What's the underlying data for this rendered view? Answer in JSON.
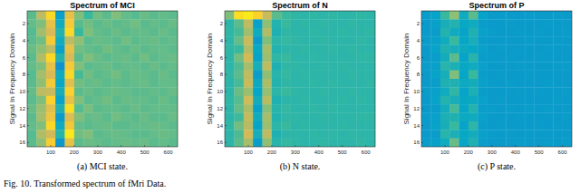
{
  "chart_data": [
    {
      "type": "heatmap",
      "title": "Spectrum of MCI",
      "y_label": "Signal In Frequency Domain",
      "caption": "(a) MCI state.",
      "xlim": [
        0,
        640
      ],
      "xticks": [
        100,
        200,
        300,
        400,
        500,
        600
      ],
      "ylim": [
        0.5,
        16.5
      ],
      "yticks": [
        2,
        4,
        6,
        8,
        10,
        12,
        14,
        16
      ],
      "zlim": [
        0,
        1
      ],
      "x": [
        20,
        60,
        100,
        140,
        180,
        220,
        260,
        300,
        340,
        380,
        420,
        460,
        500,
        540,
        580,
        620
      ],
      "y": [
        1,
        2,
        3,
        4,
        5,
        6,
        7,
        8,
        9,
        10,
        11,
        12,
        13,
        14,
        15,
        16
      ],
      "z": [
        [
          0.55,
          0.7,
          0.9,
          0.35,
          0.8,
          0.6,
          0.5,
          0.58,
          0.55,
          0.6,
          0.56,
          0.54,
          0.57,
          0.55,
          0.56,
          0.55
        ],
        [
          0.56,
          0.6,
          0.8,
          0.4,
          0.85,
          0.55,
          0.58,
          0.55,
          0.57,
          0.55,
          0.56,
          0.58,
          0.55,
          0.56,
          0.55,
          0.57
        ],
        [
          0.54,
          0.65,
          0.75,
          0.45,
          0.9,
          0.5,
          0.6,
          0.56,
          0.55,
          0.57,
          0.55,
          0.56,
          0.56,
          0.55,
          0.57,
          0.55
        ],
        [
          0.55,
          0.58,
          0.85,
          0.4,
          0.7,
          0.62,
          0.55,
          0.57,
          0.56,
          0.55,
          0.58,
          0.55,
          0.56,
          0.57,
          0.55,
          0.56
        ],
        [
          0.57,
          0.62,
          0.7,
          0.35,
          0.8,
          0.58,
          0.56,
          0.55,
          0.58,
          0.56,
          0.55,
          0.57,
          0.55,
          0.56,
          0.56,
          0.55
        ],
        [
          0.55,
          0.68,
          0.9,
          0.45,
          0.75,
          0.55,
          0.6,
          0.57,
          0.55,
          0.56,
          0.57,
          0.55,
          0.58,
          0.55,
          0.56,
          0.57
        ],
        [
          0.56,
          0.6,
          0.8,
          0.3,
          0.85,
          0.6,
          0.55,
          0.56,
          0.57,
          0.55,
          0.56,
          0.56,
          0.55,
          0.57,
          0.55,
          0.56
        ],
        [
          0.54,
          0.66,
          0.75,
          0.4,
          0.9,
          0.52,
          0.58,
          0.55,
          0.56,
          0.58,
          0.55,
          0.57,
          0.56,
          0.55,
          0.57,
          0.55
        ],
        [
          0.55,
          0.62,
          0.85,
          0.38,
          0.78,
          0.58,
          0.56,
          0.57,
          0.55,
          0.56,
          0.55,
          0.56,
          0.57,
          0.55,
          0.56,
          0.56
        ],
        [
          0.56,
          0.7,
          0.72,
          0.42,
          0.88,
          0.55,
          0.57,
          0.55,
          0.56,
          0.57,
          0.56,
          0.55,
          0.55,
          0.56,
          0.55,
          0.57
        ],
        [
          0.55,
          0.6,
          0.88,
          0.36,
          0.8,
          0.6,
          0.55,
          0.56,
          0.58,
          0.55,
          0.57,
          0.56,
          0.56,
          0.55,
          0.57,
          0.55
        ],
        [
          0.57,
          0.64,
          0.78,
          0.44,
          0.92,
          0.54,
          0.59,
          0.55,
          0.56,
          0.56,
          0.55,
          0.57,
          0.55,
          0.56,
          0.56,
          0.56
        ],
        [
          0.55,
          0.66,
          0.82,
          0.33,
          0.76,
          0.6,
          0.56,
          0.57,
          0.55,
          0.58,
          0.56,
          0.55,
          0.57,
          0.55,
          0.55,
          0.57
        ],
        [
          0.56,
          0.6,
          0.9,
          0.4,
          0.84,
          0.56,
          0.55,
          0.56,
          0.57,
          0.55,
          0.55,
          0.56,
          0.56,
          0.57,
          0.56,
          0.55
        ],
        [
          0.54,
          0.68,
          0.74,
          0.46,
          0.95,
          0.58,
          0.6,
          0.55,
          0.56,
          0.57,
          0.56,
          0.55,
          0.55,
          0.56,
          0.57,
          0.56
        ],
        [
          0.55,
          0.62,
          0.86,
          0.32,
          0.8,
          0.55,
          0.57,
          0.56,
          0.55,
          0.56,
          0.57,
          0.56,
          0.57,
          0.55,
          0.56,
          0.55
        ]
      ]
    },
    {
      "type": "heatmap",
      "title": "Spectrum of N",
      "y_label": "Signal In Frequency Domain",
      "caption": "(b) N state.",
      "xlim": [
        0,
        640
      ],
      "xticks": [
        100,
        200,
        300,
        400,
        500,
        600
      ],
      "ylim": [
        0.5,
        16.5
      ],
      "yticks": [
        2,
        4,
        6,
        8,
        10,
        12,
        14,
        16
      ],
      "zlim": [
        0,
        1
      ],
      "x": [
        20,
        60,
        100,
        140,
        180,
        220,
        260,
        300,
        340,
        380,
        420,
        460,
        500,
        540,
        580,
        620
      ],
      "y": [
        1,
        2,
        3,
        4,
        5,
        6,
        7,
        8,
        9,
        10,
        11,
        12,
        13,
        14,
        15,
        16
      ],
      "z": [
        [
          0.6,
          0.92,
          0.95,
          0.88,
          0.72,
          0.55,
          0.5,
          0.48,
          0.47,
          0.48,
          0.47,
          0.48,
          0.47,
          0.47,
          0.48,
          0.47
        ],
        [
          0.47,
          0.55,
          0.7,
          0.35,
          0.62,
          0.45,
          0.5,
          0.47,
          0.48,
          0.47,
          0.48,
          0.47,
          0.47,
          0.48,
          0.47,
          0.47
        ],
        [
          0.48,
          0.52,
          0.65,
          0.4,
          0.68,
          0.44,
          0.48,
          0.47,
          0.47,
          0.48,
          0.47,
          0.47,
          0.48,
          0.47,
          0.47,
          0.48
        ],
        [
          0.47,
          0.56,
          0.72,
          0.33,
          0.6,
          0.47,
          0.49,
          0.48,
          0.47,
          0.47,
          0.48,
          0.47,
          0.47,
          0.47,
          0.48,
          0.47
        ],
        [
          0.48,
          0.5,
          0.68,
          0.38,
          0.66,
          0.45,
          0.47,
          0.47,
          0.48,
          0.47,
          0.47,
          0.48,
          0.47,
          0.48,
          0.47,
          0.47
        ],
        [
          0.47,
          0.58,
          0.74,
          0.36,
          0.64,
          0.48,
          0.5,
          0.47,
          0.47,
          0.48,
          0.47,
          0.47,
          0.47,
          0.47,
          0.48,
          0.48
        ],
        [
          0.47,
          0.53,
          0.66,
          0.42,
          0.7,
          0.44,
          0.48,
          0.48,
          0.47,
          0.47,
          0.48,
          0.47,
          0.48,
          0.47,
          0.47,
          0.47
        ],
        [
          0.48,
          0.55,
          0.7,
          0.34,
          0.62,
          0.46,
          0.49,
          0.47,
          0.48,
          0.47,
          0.47,
          0.47,
          0.47,
          0.48,
          0.47,
          0.47
        ],
        [
          0.47,
          0.52,
          0.72,
          0.39,
          0.67,
          0.45,
          0.48,
          0.47,
          0.47,
          0.48,
          0.47,
          0.48,
          0.47,
          0.47,
          0.47,
          0.48
        ],
        [
          0.47,
          0.57,
          0.64,
          0.37,
          0.63,
          0.47,
          0.5,
          0.48,
          0.47,
          0.47,
          0.48,
          0.47,
          0.47,
          0.48,
          0.47,
          0.47
        ],
        [
          0.48,
          0.54,
          0.73,
          0.41,
          0.69,
          0.44,
          0.47,
          0.47,
          0.48,
          0.47,
          0.47,
          0.47,
          0.48,
          0.47,
          0.48,
          0.47
        ],
        [
          0.47,
          0.56,
          0.67,
          0.35,
          0.61,
          0.46,
          0.49,
          0.47,
          0.47,
          0.48,
          0.47,
          0.48,
          0.47,
          0.47,
          0.47,
          0.47
        ],
        [
          0.47,
          0.51,
          0.71,
          0.4,
          0.66,
          0.45,
          0.48,
          0.48,
          0.47,
          0.47,
          0.48,
          0.47,
          0.47,
          0.47,
          0.48,
          0.48
        ],
        [
          0.48,
          0.58,
          0.69,
          0.36,
          0.64,
          0.47,
          0.5,
          0.47,
          0.48,
          0.47,
          0.47,
          0.47,
          0.48,
          0.47,
          0.47,
          0.47
        ],
        [
          0.47,
          0.53,
          0.74,
          0.42,
          0.7,
          0.44,
          0.47,
          0.47,
          0.47,
          0.48,
          0.47,
          0.48,
          0.47,
          0.48,
          0.47,
          0.47
        ],
        [
          0.47,
          0.55,
          0.66,
          0.34,
          0.62,
          0.46,
          0.49,
          0.48,
          0.47,
          0.47,
          0.48,
          0.47,
          0.47,
          0.47,
          0.48,
          0.47
        ]
      ]
    },
    {
      "type": "heatmap",
      "title": "Spectrum of P",
      "y_label": "Signal In Frequency Domain",
      "caption": "(c) P state.",
      "xlim": [
        0,
        640
      ],
      "xticks": [
        100,
        200,
        300,
        400,
        500,
        600
      ],
      "ylim": [
        0.5,
        16.5
      ],
      "yticks": [
        2,
        4,
        6,
        8,
        10,
        12,
        14,
        16
      ],
      "zlim": [
        0,
        1
      ],
      "x": [
        20,
        60,
        100,
        140,
        180,
        220,
        260,
        300,
        340,
        380,
        420,
        460,
        500,
        540,
        580,
        620
      ],
      "y": [
        1,
        2,
        3,
        4,
        5,
        6,
        7,
        8,
        9,
        10,
        11,
        12,
        13,
        14,
        15,
        16
      ],
      "z": [
        [
          0.34,
          0.36,
          0.5,
          0.62,
          0.4,
          0.55,
          0.36,
          0.33,
          0.34,
          0.33,
          0.33,
          0.34,
          0.33,
          0.33,
          0.34,
          0.33
        ],
        [
          0.33,
          0.35,
          0.42,
          0.45,
          0.38,
          0.4,
          0.34,
          0.33,
          0.33,
          0.34,
          0.33,
          0.33,
          0.33,
          0.34,
          0.33,
          0.33
        ],
        [
          0.33,
          0.34,
          0.45,
          0.4,
          0.36,
          0.44,
          0.35,
          0.34,
          0.33,
          0.33,
          0.34,
          0.33,
          0.34,
          0.33,
          0.33,
          0.34
        ],
        [
          0.34,
          0.35,
          0.4,
          0.5,
          0.37,
          0.42,
          0.34,
          0.33,
          0.33,
          0.33,
          0.33,
          0.34,
          0.33,
          0.33,
          0.34,
          0.33
        ],
        [
          0.33,
          0.36,
          0.44,
          0.42,
          0.39,
          0.38,
          0.35,
          0.33,
          0.34,
          0.33,
          0.33,
          0.33,
          0.33,
          0.34,
          0.33,
          0.33
        ],
        [
          0.33,
          0.34,
          0.41,
          0.55,
          0.36,
          0.46,
          0.34,
          0.34,
          0.33,
          0.34,
          0.33,
          0.33,
          0.34,
          0.33,
          0.33,
          0.33
        ],
        [
          0.34,
          0.35,
          0.46,
          0.43,
          0.38,
          0.4,
          0.35,
          0.33,
          0.33,
          0.33,
          0.34,
          0.33,
          0.33,
          0.33,
          0.34,
          0.34
        ],
        [
          0.33,
          0.36,
          0.42,
          0.6,
          0.37,
          0.5,
          0.34,
          0.33,
          0.34,
          0.33,
          0.33,
          0.34,
          0.33,
          0.33,
          0.33,
          0.33
        ],
        [
          0.33,
          0.34,
          0.44,
          0.44,
          0.39,
          0.41,
          0.35,
          0.34,
          0.33,
          0.34,
          0.33,
          0.33,
          0.33,
          0.34,
          0.33,
          0.33
        ],
        [
          0.34,
          0.35,
          0.4,
          0.48,
          0.36,
          0.43,
          0.34,
          0.33,
          0.33,
          0.33,
          0.34,
          0.33,
          0.34,
          0.33,
          0.33,
          0.34
        ],
        [
          0.33,
          0.36,
          0.45,
          0.42,
          0.38,
          0.39,
          0.35,
          0.33,
          0.34,
          0.33,
          0.33,
          0.33,
          0.33,
          0.33,
          0.34,
          0.33
        ],
        [
          0.33,
          0.34,
          0.41,
          0.52,
          0.37,
          0.45,
          0.34,
          0.34,
          0.33,
          0.34,
          0.33,
          0.34,
          0.33,
          0.34,
          0.33,
          0.33
        ],
        [
          0.34,
          0.35,
          0.43,
          0.44,
          0.39,
          0.4,
          0.35,
          0.33,
          0.33,
          0.33,
          0.34,
          0.33,
          0.33,
          0.33,
          0.33,
          0.34
        ],
        [
          0.33,
          0.36,
          0.42,
          0.5,
          0.36,
          0.47,
          0.34,
          0.33,
          0.34,
          0.33,
          0.33,
          0.33,
          0.34,
          0.33,
          0.34,
          0.33
        ],
        [
          0.33,
          0.34,
          0.46,
          0.43,
          0.38,
          0.41,
          0.35,
          0.34,
          0.33,
          0.34,
          0.33,
          0.34,
          0.33,
          0.33,
          0.33,
          0.33
        ],
        [
          0.34,
          0.35,
          0.4,
          0.57,
          0.37,
          0.44,
          0.34,
          0.33,
          0.33,
          0.33,
          0.34,
          0.33,
          0.33,
          0.34,
          0.33,
          0.34
        ]
      ]
    }
  ],
  "figure_caption": "Fig. 10.  Transformed spectrum of fMri Data."
}
